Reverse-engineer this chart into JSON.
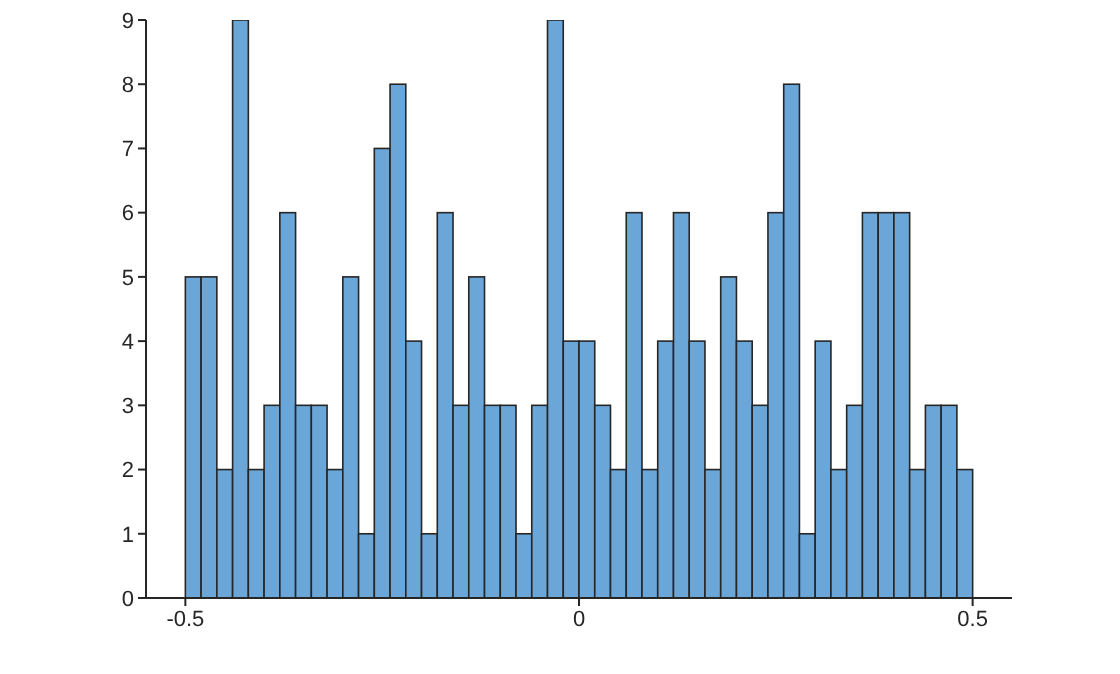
{
  "chart_data": {
    "type": "histogram",
    "bins": [
      -0.5,
      -0.48,
      -0.46,
      -0.44,
      -0.42,
      -0.4,
      -0.38,
      -0.36,
      -0.34,
      -0.32,
      -0.3,
      -0.28,
      -0.26,
      -0.24,
      -0.22,
      -0.2,
      -0.18,
      -0.16,
      -0.14,
      -0.12,
      -0.1,
      -0.08,
      -0.06,
      -0.04,
      -0.02,
      0,
      0.02,
      0.04,
      0.06,
      0.08,
      0.1,
      0.12,
      0.14,
      0.16,
      0.18,
      0.2,
      0.22,
      0.24,
      0.26,
      0.28,
      0.3,
      0.32,
      0.34,
      0.36,
      0.38,
      0.4,
      0.42,
      0.44,
      0.46,
      0.48,
      0.5
    ],
    "values": [
      5,
      5,
      2,
      9,
      2,
      3,
      6,
      3,
      3,
      2,
      5,
      1,
      7,
      8,
      4,
      1,
      6,
      3,
      5,
      3,
      3,
      1,
      3,
      9,
      4,
      4,
      3,
      2,
      6,
      2,
      4,
      6,
      4,
      2,
      5,
      4,
      3,
      6,
      8,
      1,
      4,
      2,
      3,
      6,
      6,
      6,
      2,
      3,
      3,
      2
    ],
    "color": "#6ba6d8",
    "xlim": [
      -0.55,
      0.55
    ],
    "xticks": [
      -0.5,
      0,
      0.5
    ],
    "ylim": [
      0,
      9
    ],
    "yticks": [
      0,
      1,
      2,
      3,
      4,
      5,
      6,
      7,
      8,
      9
    ],
    "grid": false
  }
}
